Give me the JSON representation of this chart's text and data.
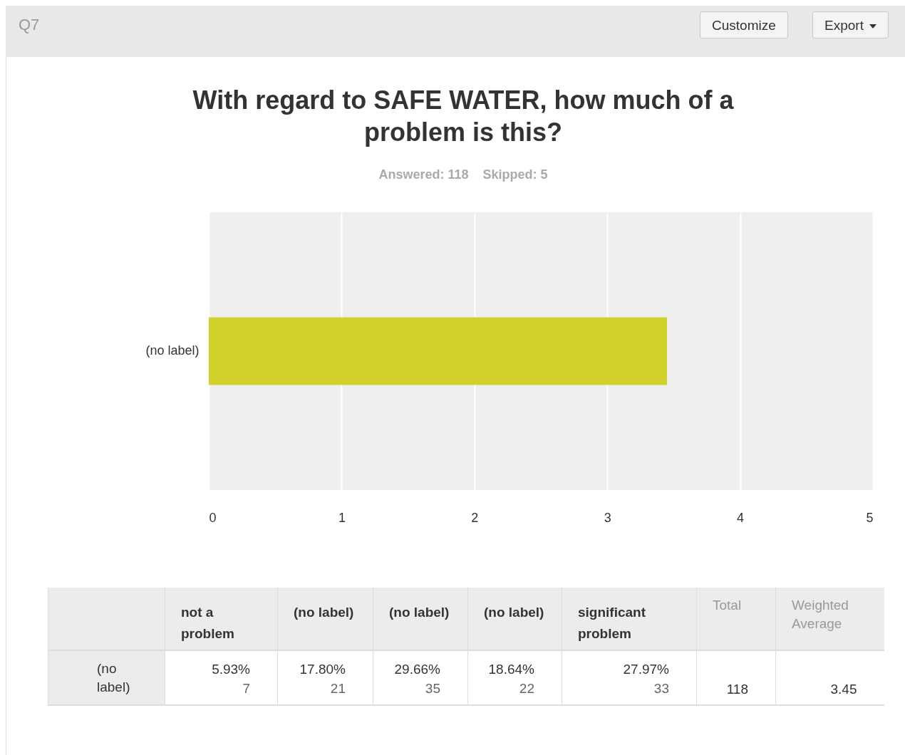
{
  "chart_data": [
    {
      "type": "bar",
      "title": "With regard to SAFE WATER, how much of a problem is this?",
      "subtitle": "Answered: 118    Skipped: 5",
      "annotations": [
        "Q7",
        "Customize",
        "Export"
      ],
      "orientation": "horizontal",
      "categories": [
        "(no label)"
      ],
      "values": [
        3.45
      ],
      "color": "#d0d22a",
      "xlim": [
        0,
        5
      ],
      "xticks": [
        0,
        1,
        2,
        3,
        4,
        5
      ],
      "grid": "x"
    },
    {
      "type": "other",
      "categories": [
        "not a problem",
        "(no label)",
        "(no label)",
        "(no label)",
        "significant problem",
        "Total",
        "Weighted Average"
      ],
      "y_categories": [
        "(no label)"
      ],
      "cell_labels": [
        [
          [
            "5.93%",
            "7"
          ],
          [
            "17.80%",
            "21"
          ],
          [
            "29.66%",
            "35"
          ],
          [
            "18.64%",
            "22"
          ],
          [
            "27.97%",
            "33"
          ],
          [
            "118"
          ],
          [
            "3.45"
          ]
        ]
      ]
    }
  ]
}
